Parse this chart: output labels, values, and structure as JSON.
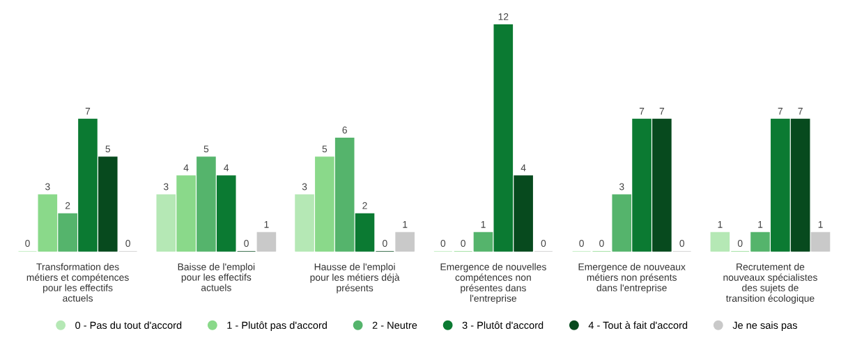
{
  "chart_data": {
    "type": "bar",
    "categories": [
      "Transformation des métiers et compétences pour les effectifs actuels",
      "Baisse de l'emploi pour les effectifs actuels",
      "Hausse de l'emploi pour les métiers déjà présents",
      "Emergence de nouvelles compétences non présentes dans l'entreprise",
      "Emergence de nouveaux métiers non présents dans l'entreprise",
      "Recrutement de nouveaux spécialistes des sujets de transition écologique"
    ],
    "series": [
      {
        "name": "0 - Pas du tout d'accord",
        "color": "#b5e8b5",
        "values": [
          0,
          3,
          3,
          0,
          0,
          1
        ]
      },
      {
        "name": "1 - Plutôt pas d'accord",
        "color": "#8ad98a",
        "values": [
          3,
          4,
          5,
          0,
          0,
          0
        ]
      },
      {
        "name": "2 - Neutre",
        "color": "#55b46c",
        "values": [
          2,
          5,
          6,
          1,
          3,
          1
        ]
      },
      {
        "name": "3 - Plutôt d'accord",
        "color": "#0b7a32",
        "values": [
          7,
          4,
          2,
          12,
          7,
          7
        ]
      },
      {
        "name": "4 - Tout à fait d'accord",
        "color": "#074a1e",
        "values": [
          5,
          0,
          0,
          4,
          7,
          7
        ]
      },
      {
        "name": "Je ne sais pas",
        "color": "#c9c9c9",
        "values": [
          0,
          1,
          1,
          0,
          0,
          1
        ]
      }
    ],
    "tick_labels": "x",
    "data_labels": true,
    "legend": "bottom",
    "marker": "circle",
    "grid": false
  }
}
